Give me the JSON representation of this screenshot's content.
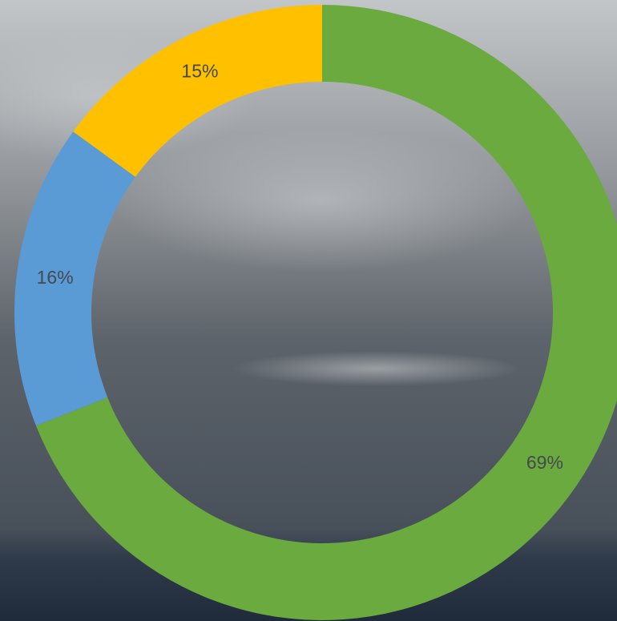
{
  "chart_data": {
    "type": "donut",
    "values": [
      69,
      16,
      15
    ],
    "value_labels": [
      "69%",
      "16%",
      "15%"
    ],
    "colors": [
      "#6aaa3f",
      "#5b9bd5",
      "#ffc000"
    ],
    "legend": false
  }
}
